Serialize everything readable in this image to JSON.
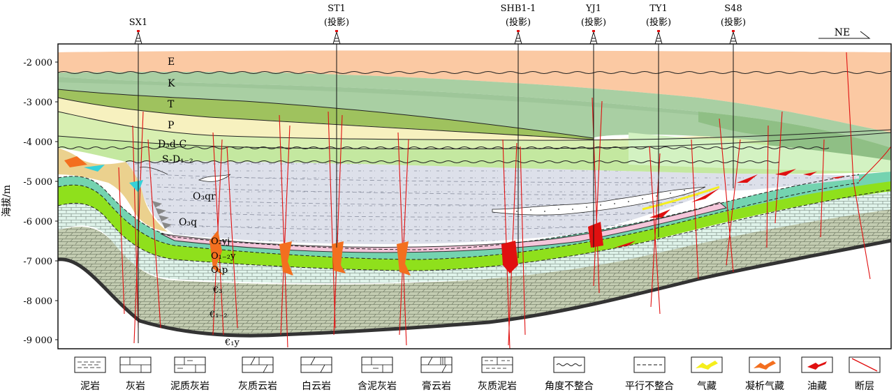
{
  "y_axis": {
    "label": "海拔/m",
    "ticks": [
      "-2 000",
      "-3 000",
      "-4 000",
      "-5 000",
      "-6 000",
      "-7 000",
      "-8 000",
      "-9 000"
    ]
  },
  "wells": [
    {
      "name": "SX1",
      "sub": ""
    },
    {
      "name": "ST1",
      "sub": "(投影)"
    },
    {
      "name": "SHB1-1",
      "sub": "(投影)"
    },
    {
      "name": "YJ1",
      "sub": "(投影)"
    },
    {
      "name": "TY1",
      "sub": "(投影)"
    },
    {
      "name": "S48",
      "sub": "(投影)"
    }
  ],
  "direction": "NE",
  "strata": {
    "E": "E",
    "K": "K",
    "T": "T",
    "P": "P",
    "D3dC": "D₃d-C",
    "SD12": "S-D₁₋₂",
    "O3qr": "O₃qr",
    "O3q": "O₃q",
    "O2yj": "O₂yj",
    "O12y": "O₁₋₂y",
    "O1p": "O₁p",
    "C3": "€₃",
    "C12": "€₁₋₂",
    "C1y": "€₁y"
  },
  "legend": [
    {
      "key": "mudstone",
      "label": "泥岩"
    },
    {
      "key": "limestone",
      "label": "灰岩"
    },
    {
      "key": "argillaceous-limestone",
      "label": "泥质灰岩"
    },
    {
      "key": "calcareous-dolomite",
      "label": "灰质云岩"
    },
    {
      "key": "dolomite",
      "label": "白云岩"
    },
    {
      "key": "muddy-limestone",
      "label": "含泥灰岩"
    },
    {
      "key": "gypsum-dolomite",
      "label": "膏云岩"
    },
    {
      "key": "calcareous-mudstone",
      "label": "灰质泥岩"
    },
    {
      "key": "angular-unconformity",
      "label": "角度不整合"
    },
    {
      "key": "parallel-unconformity",
      "label": "平行不整合"
    },
    {
      "key": "gas-reservoir",
      "label": "气藏"
    },
    {
      "key": "condensate-gas-reservoir",
      "label": "凝析气藏"
    },
    {
      "key": "oil-reservoir",
      "label": "油藏"
    },
    {
      "key": "fault",
      "label": "断层"
    }
  ],
  "colors": {
    "E": "#fbc9a3",
    "K": "#a9cfa3",
    "T": "#9fc25e",
    "P": "#f7f1bf",
    "D3dC": "#d8efb1",
    "SD12": "#c4e8a0",
    "basin": "#dde0ea",
    "O2yj": "#f4c6da",
    "O12y": "#74d3b0",
    "O1p": "#8fe01c",
    "cambrian_upper": "#dff3ea",
    "cambrian_lower": "#c3ccb1",
    "fault": "#e01010",
    "oil": "#e01010",
    "condensate": "#f36f1f",
    "gas": "#f5ee1c"
  }
}
